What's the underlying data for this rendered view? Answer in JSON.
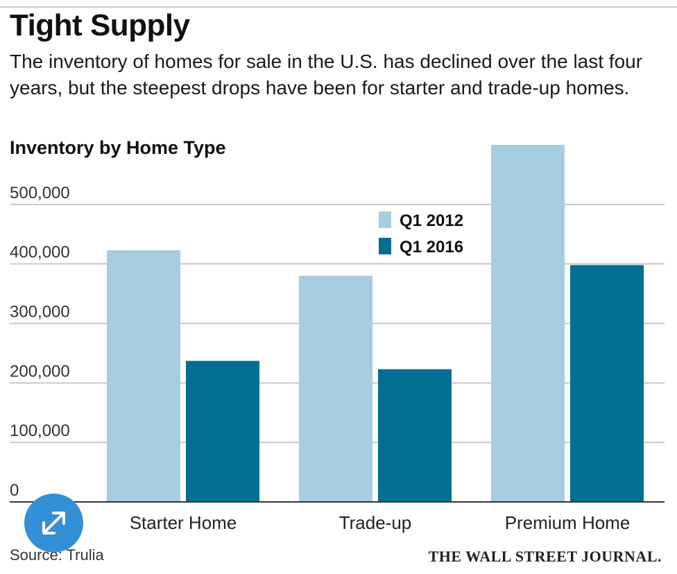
{
  "header": {
    "title": "Tight Supply",
    "subtitle": "The inventory of homes for sale in the U.S. has declined over the last four years, but the steepest drops have been for starter and trade-up homes."
  },
  "chart_data": {
    "type": "bar",
    "title": "Inventory by Home Type",
    "categories": [
      "Starter Home",
      "Trade-up",
      "Premium Home"
    ],
    "series": [
      {
        "name": "Q1 2012",
        "values": [
          423000,
          380000,
          600000
        ],
        "color": "#a6cde0"
      },
      {
        "name": "Q1 2016",
        "values": [
          237000,
          223000,
          398000
        ],
        "color": "#006f91"
      }
    ],
    "ylim": [
      0,
      600000
    ],
    "yticks": [
      0,
      100000,
      200000,
      300000,
      400000,
      500000
    ],
    "ytick_labels": [
      "0",
      "100,000",
      "200,000",
      "300,000",
      "400,000",
      "500,000"
    ],
    "xlabel": "",
    "ylabel": "",
    "grid": true,
    "legend": "top-center"
  },
  "footer": {
    "source": "Source: Trulia",
    "publisher": "THE WALL STREET JOURNAL."
  },
  "controls": {
    "expand_icon": "expand-arrows-icon",
    "expand_color": "#3390d6"
  }
}
